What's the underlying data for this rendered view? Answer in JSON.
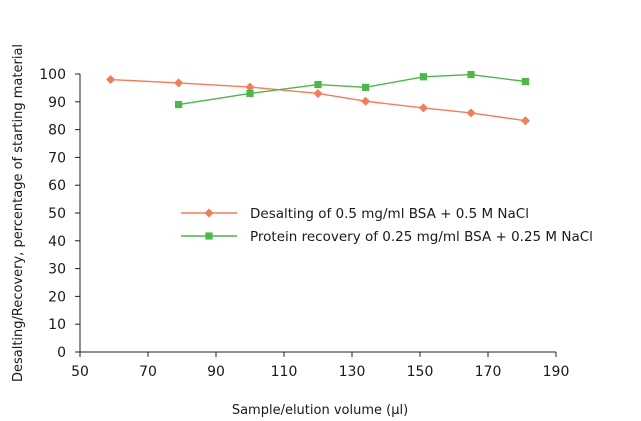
{
  "chart_data": {
    "type": "line",
    "title": "",
    "xlabel": "Sample/elution volume (µl)",
    "ylabel": "Desalting/Recovery, percentage of starting material",
    "xlim": [
      50,
      190
    ],
    "ylim": [
      0,
      100
    ],
    "x_ticks": [
      "50",
      "70",
      "90",
      "110",
      "130",
      "150",
      "170",
      "190"
    ],
    "y_ticks": [
      "0",
      "10",
      "20",
      "30",
      "40",
      "50",
      "60",
      "70",
      "80",
      "90",
      "100"
    ],
    "grid": false,
    "legend_position": "center-right",
    "series": [
      {
        "name": "Desalting of 0.5 mg/ml BSA + 0.5 M NaCl",
        "marker": "diamond",
        "color": "#f47c5a",
        "points": [
          [
            59,
            98
          ],
          [
            79,
            96.8
          ],
          [
            100,
            95.3
          ],
          [
            120,
            93
          ],
          [
            134,
            90.2
          ],
          [
            151,
            87.8
          ],
          [
            165,
            86
          ],
          [
            181,
            83.2
          ]
        ]
      },
      {
        "name": "Protein recovery of 0.25 mg/ml BSA + 0.25 M NaCl",
        "marker": "square",
        "color": "#4cb848",
        "points": [
          [
            79,
            89
          ],
          [
            100,
            93
          ],
          [
            120,
            96.2
          ],
          [
            134,
            95.2
          ],
          [
            151,
            99
          ],
          [
            165,
            99.8
          ],
          [
            181,
            97.3
          ]
        ]
      }
    ]
  }
}
